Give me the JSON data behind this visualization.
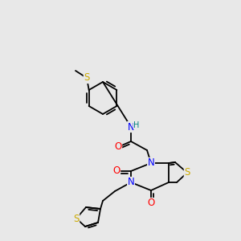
{
  "background_color": "#e8e8e8",
  "bond_color": "#000000",
  "atom_colors": {
    "N": "#0000ff",
    "O": "#ff0000",
    "S": "#ccaa00",
    "H": "#008080"
  },
  "font_size_atom": 8.5,
  "lw": 1.3
}
